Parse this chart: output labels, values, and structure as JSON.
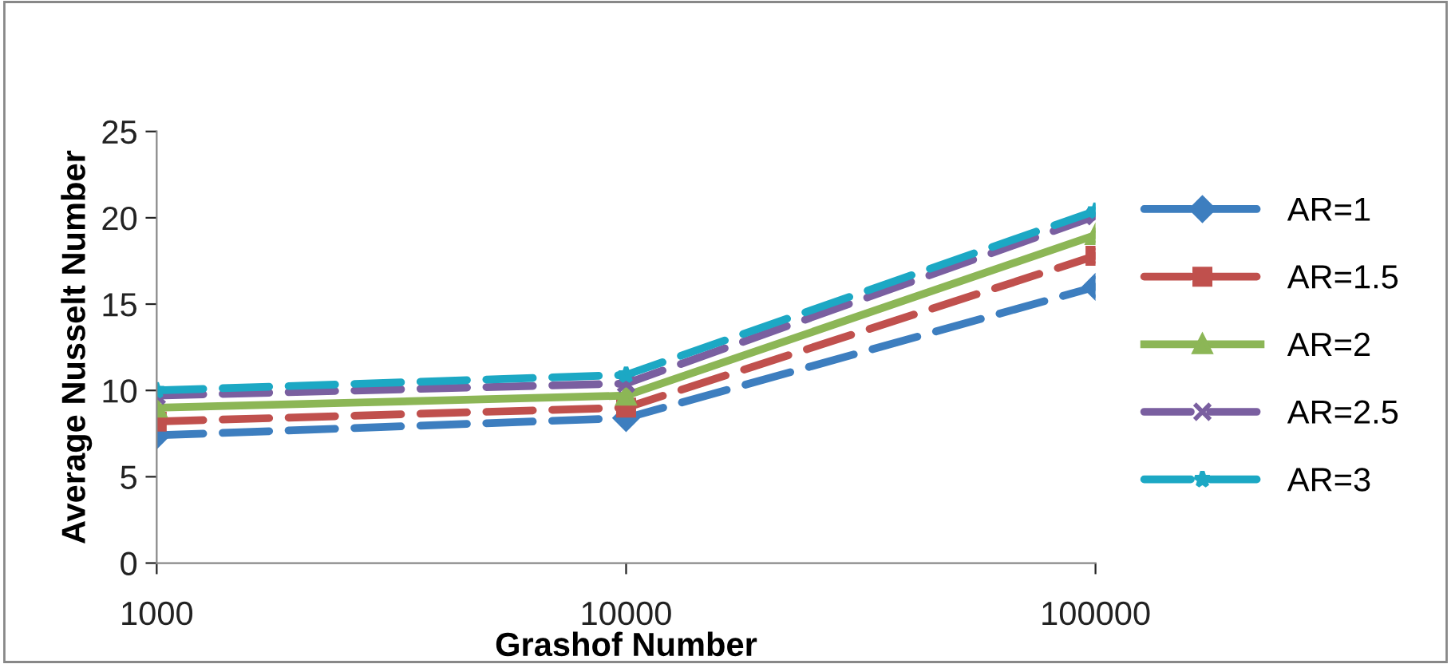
{
  "chart_data": {
    "type": "line",
    "xlabel": "Grashof Number",
    "ylabel": "Average Nusselt Number",
    "x": [
      1000,
      10000,
      100000
    ],
    "log": "x",
    "xlim": [
      1000,
      100000
    ],
    "xticks": [
      1000,
      10000,
      100000
    ],
    "ylim": [
      0,
      25
    ],
    "yticks": [
      0,
      5,
      10,
      15,
      20,
      25
    ],
    "grid": false,
    "legend": "right",
    "series": [
      {
        "name": "AR=1",
        "color": "#3d7ebf",
        "marker": "diamond",
        "line_style": "dashed",
        "values": [
          7.4,
          8.4,
          16.0
        ]
      },
      {
        "name": "AR=1.5",
        "color": "#c0504d",
        "marker": "square",
        "line_style": "dashed",
        "values": [
          8.2,
          9.0,
          17.8
        ]
      },
      {
        "name": "AR=2",
        "color": "#8cb656",
        "marker": "triangle",
        "line_style": "solid",
        "values": [
          9.0,
          9.7,
          19.0
        ]
      },
      {
        "name": "AR=2.5",
        "color": "#7a5fa0",
        "marker": "cross",
        "line_style": "dashed",
        "values": [
          9.7,
          10.4,
          20.1
        ]
      },
      {
        "name": "AR=3",
        "color": "#1ca8c4",
        "marker": "star",
        "line_style": "dashed",
        "values": [
          10.0,
          10.9,
          20.4
        ]
      }
    ]
  }
}
